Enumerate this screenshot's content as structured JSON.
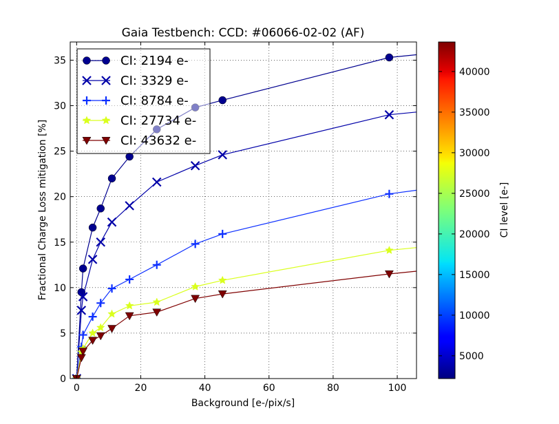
{
  "chart_data": {
    "type": "line",
    "title": "Gaia Testbench: CCD: #06066-02-02 (AF)",
    "xlabel": "Background [e-/pix/s]",
    "ylabel": "Fractional Charge Loss mitigation [%]",
    "xlim": [
      -2,
      106
    ],
    "ylim": [
      0,
      37
    ],
    "xticks": [
      0,
      20,
      40,
      60,
      80,
      100
    ],
    "yticks": [
      0,
      5,
      10,
      15,
      20,
      25,
      30,
      35
    ],
    "grid": true,
    "legend_position": "top-left",
    "colorbar": {
      "label": "CI level [e-]",
      "range": [
        2194,
        43632
      ],
      "ticks": [
        5000,
        10000,
        15000,
        20000,
        25000,
        30000,
        35000,
        40000
      ]
    },
    "series": [
      {
        "name": "CI: 2194 e-",
        "marker": "circle",
        "color": "#00008f",
        "x": [
          0,
          1.5,
          2,
          5,
          7.5,
          11,
          16.5,
          25,
          37,
          45.5,
          97.5,
          106
        ],
        "y": [
          0,
          9.5,
          12.1,
          16.6,
          18.7,
          22.0,
          24.4,
          27.4,
          29.8,
          30.6,
          35.3,
          35.6
        ]
      },
      {
        "name": "CI: 3329 e-",
        "marker": "x",
        "color": "#0000a8",
        "x": [
          0,
          1.5,
          2,
          5,
          7.5,
          11,
          16.5,
          25,
          37,
          45.5,
          97.5,
          106
        ],
        "y": [
          0,
          7.5,
          9.0,
          13.1,
          15.0,
          17.2,
          19.0,
          21.6,
          23.4,
          24.6,
          29.0,
          29.3
        ]
      },
      {
        "name": "CI: 8784 e-",
        "marker": "plus",
        "color": "#0c2fff",
        "x": [
          0,
          1.5,
          2,
          5,
          7.5,
          11,
          16.5,
          25,
          37,
          45.5,
          97.5,
          106
        ],
        "y": [
          0,
          3.5,
          4.8,
          6.8,
          8.3,
          9.9,
          10.9,
          12.5,
          14.8,
          15.9,
          20.3,
          20.7
        ]
      },
      {
        "name": "CI: 27734 e-",
        "marker": "star",
        "color": "#daff1d",
        "x": [
          0,
          1.5,
          2,
          5,
          7.5,
          11,
          16.5,
          25,
          37,
          45.5,
          97.5,
          106
        ],
        "y": [
          0,
          2.9,
          3.3,
          5.0,
          5.6,
          7.1,
          8.0,
          8.4,
          10.1,
          10.8,
          14.1,
          14.4
        ]
      },
      {
        "name": "CI: 43632 e-",
        "marker": "triangle-down",
        "color": "#7f0000",
        "x": [
          0,
          1.5,
          2,
          5,
          7.5,
          11,
          16.5,
          25,
          37,
          45.5,
          97.5,
          106
        ],
        "y": [
          0,
          2.3,
          3.0,
          4.2,
          4.7,
          5.5,
          6.9,
          7.3,
          8.8,
          9.3,
          11.5,
          11.8
        ]
      }
    ]
  }
}
